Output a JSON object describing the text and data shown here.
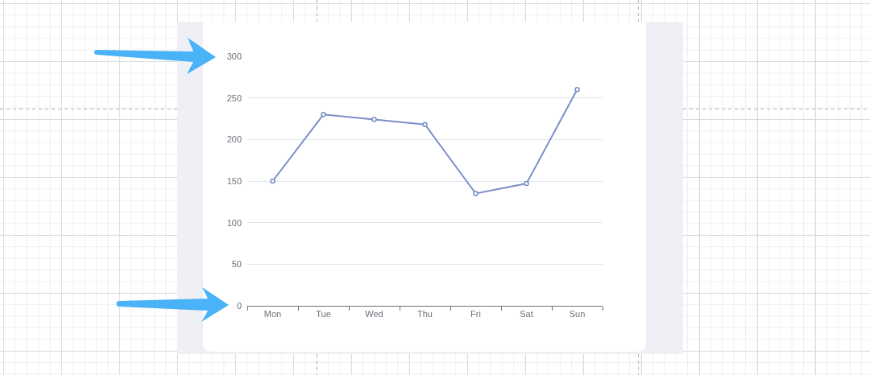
{
  "chart_data": {
    "type": "line",
    "categories": [
      "Mon",
      "Tue",
      "Wed",
      "Thu",
      "Fri",
      "Sat",
      "Sun"
    ],
    "series": [
      {
        "color": "#7b8ec8",
        "values": [
          150,
          230,
          224,
          218,
          135,
          147,
          260
        ]
      }
    ],
    "ylim": [
      0,
      300
    ],
    "yticks": [
      0,
      50,
      100,
      150,
      200,
      250,
      300
    ],
    "grid": "y",
    "marker": "circle",
    "line_style": "solid"
  }
}
